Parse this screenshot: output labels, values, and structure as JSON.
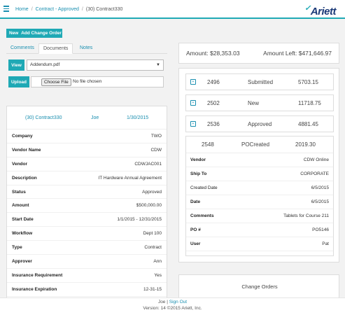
{
  "breadcrumb": {
    "home": "Home",
    "contract": "Contract - Approved",
    "current": "(30) Contract330"
  },
  "logo": {
    "text": "Ariett"
  },
  "toolbar": {
    "new_label": "New",
    "add_change_order_label": "Add Change Order"
  },
  "tabs": [
    {
      "label": "Comments"
    },
    {
      "label": "Documents"
    },
    {
      "label": "Notes"
    }
  ],
  "documents": {
    "view_label": "View",
    "selected_file": "Addendum.pdf",
    "upload_label": "Upload",
    "choose_file_label": "Choose File",
    "no_file_text": "No file chosen"
  },
  "contract": {
    "header": {
      "name": "(30) Contract330",
      "user": "Joe",
      "date": "1/30/2015"
    },
    "fields": [
      {
        "label": "Company",
        "value": "TWO"
      },
      {
        "label": "Vendor Name",
        "value": "CDW"
      },
      {
        "label": "Vendor",
        "value": "CDWJAC001"
      },
      {
        "label": "Description",
        "value": "IT Hardware Annual Agreement"
      },
      {
        "label": "Status",
        "value": "Approved"
      },
      {
        "label": "Amount",
        "value": "$500,000.00"
      },
      {
        "label": "Start Date",
        "value": "1/1/2015 - 12/31/2015"
      },
      {
        "label": "Workflow",
        "value": "Dept 100"
      },
      {
        "label": "Type",
        "value": "Contract"
      },
      {
        "label": "Approver",
        "value": "Ann"
      },
      {
        "label": "Insurance Requirement",
        "value": "Yes"
      },
      {
        "label": "Insurance Expiration",
        "value": "12-31-15"
      }
    ]
  },
  "amounts": {
    "amount": "Amount: $28,353.03",
    "amount_left": "Amount Left: $471,646.97"
  },
  "orders": [
    {
      "number": "2496",
      "status": "Submitted",
      "amount": "5703.15"
    },
    {
      "number": "2502",
      "status": "New",
      "amount": "11718.75"
    },
    {
      "number": "2536",
      "status": "Approved",
      "amount": "4881.45"
    }
  ],
  "po_detail": {
    "number": "2548",
    "status": "POCreated",
    "amount": "2019.30",
    "fields": [
      {
        "label": "Vendor",
        "value": "CDW Online",
        "bold": true
      },
      {
        "label": "Ship To",
        "value": "CORPORATE",
        "bold": true
      },
      {
        "label": "Created Date",
        "value": "6/5/2015",
        "bold": false
      },
      {
        "label": "Date",
        "value": "6/5/2015",
        "bold": true
      },
      {
        "label": "Comments",
        "value": "Tablets for Course 211",
        "bold": true
      },
      {
        "label": "PO #",
        "value": "PO5146",
        "bold": true
      },
      {
        "label": "User",
        "value": "Pat",
        "bold": true
      }
    ]
  },
  "change_orders": {
    "title": "Change Orders"
  },
  "footer": {
    "user": "Joe",
    "separator": "|",
    "sign_out": "Sign Out",
    "version": "Version: 14 ©2015 Ariett, Inc."
  }
}
